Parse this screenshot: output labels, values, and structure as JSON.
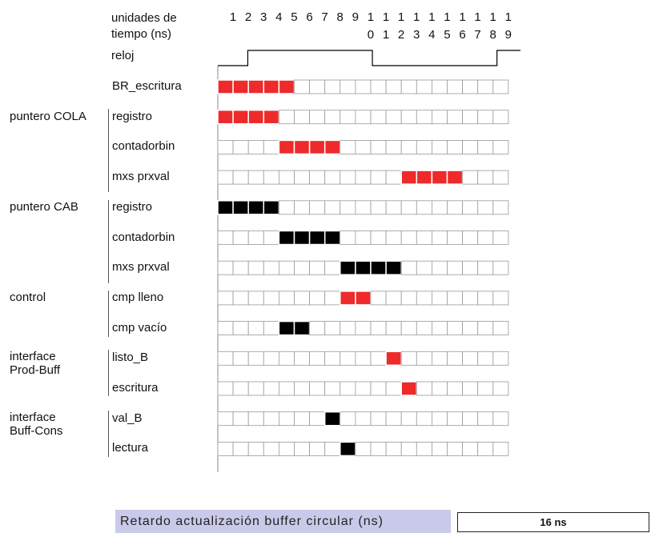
{
  "header": {
    "units_label_line1": "unidades de",
    "units_label_line2": "tiempo (ns)",
    "clock_label": "reloj"
  },
  "ticks": [
    {
      "top": "1",
      "bottom": ""
    },
    {
      "top": "2",
      "bottom": ""
    },
    {
      "top": "3",
      "bottom": ""
    },
    {
      "top": "4",
      "bottom": ""
    },
    {
      "top": "5",
      "bottom": ""
    },
    {
      "top": "6",
      "bottom": ""
    },
    {
      "top": "7",
      "bottom": ""
    },
    {
      "top": "8",
      "bottom": ""
    },
    {
      "top": "9",
      "bottom": ""
    },
    {
      "top": "1",
      "bottom": "0"
    },
    {
      "top": "1",
      "bottom": "1"
    },
    {
      "top": "1",
      "bottom": "2"
    },
    {
      "top": "1",
      "bottom": "3"
    },
    {
      "top": "1",
      "bottom": "4"
    },
    {
      "top": "1",
      "bottom": "5"
    },
    {
      "top": "1",
      "bottom": "6"
    },
    {
      "top": "1",
      "bottom": "7"
    },
    {
      "top": "1",
      "bottom": "8"
    },
    {
      "top": "1",
      "bottom": "9"
    }
  ],
  "groups": [
    {
      "name_line1": "puntero COLA",
      "name_line2": ""
    },
    {
      "name_line1": "puntero CAB",
      "name_line2": ""
    },
    {
      "name_line1": "control",
      "name_line2": ""
    },
    {
      "name_line1": "interface",
      "name_line2": "Prod-Buff"
    },
    {
      "name_line1": "interface",
      "name_line2": "Buff-Cons"
    }
  ],
  "colors": {
    "red": "#ee2a2a",
    "black": "#000000",
    "grid": "#9a9a9a",
    "cell": "#ffffff"
  },
  "grid": {
    "columns": 19
  },
  "signals": [
    {
      "label": "BR_escritura",
      "color": "red",
      "active": [
        1,
        2,
        3,
        4,
        5
      ]
    },
    {
      "label": "registro",
      "color": "red",
      "active": [
        1,
        2,
        3,
        4
      ]
    },
    {
      "label": "contadorbin",
      "color": "red",
      "active": [
        5,
        6,
        7,
        8
      ]
    },
    {
      "label": "mxs prxval",
      "color": "red",
      "active": [
        13,
        14,
        15,
        16
      ]
    },
    {
      "label": "registro",
      "color": "black",
      "active": [
        1,
        2,
        3,
        4
      ]
    },
    {
      "label": "contadorbin",
      "color": "black",
      "active": [
        5,
        6,
        7,
        8
      ]
    },
    {
      "label": "mxs prxval",
      "color": "black",
      "active": [
        9,
        10,
        11,
        12
      ]
    },
    {
      "label": "cmp lleno",
      "color": "red",
      "active": [
        9,
        10
      ]
    },
    {
      "label": "cmp vacío",
      "color": "black",
      "active": [
        5,
        6
      ]
    },
    {
      "label": "listo_B",
      "color": "red",
      "active": [
        12
      ]
    },
    {
      "label": "escritura",
      "color": "red",
      "active": [
        13
      ]
    },
    {
      "label": "val_B",
      "color": "black",
      "active": [
        8
      ]
    },
    {
      "label": "lectura",
      "color": "black",
      "active": [
        9
      ]
    }
  ],
  "clock": {
    "segments": [
      {
        "from": 0,
        "to": 1,
        "level": 0
      },
      {
        "from": 1,
        "to": 9,
        "level": 1
      },
      {
        "from": 9,
        "to": 17,
        "level": 0
      },
      {
        "from": 17,
        "to": 19,
        "level": 1
      }
    ]
  },
  "footer": {
    "label": "Retardo actualización buffer circular (ns)",
    "value": "16 ns"
  }
}
